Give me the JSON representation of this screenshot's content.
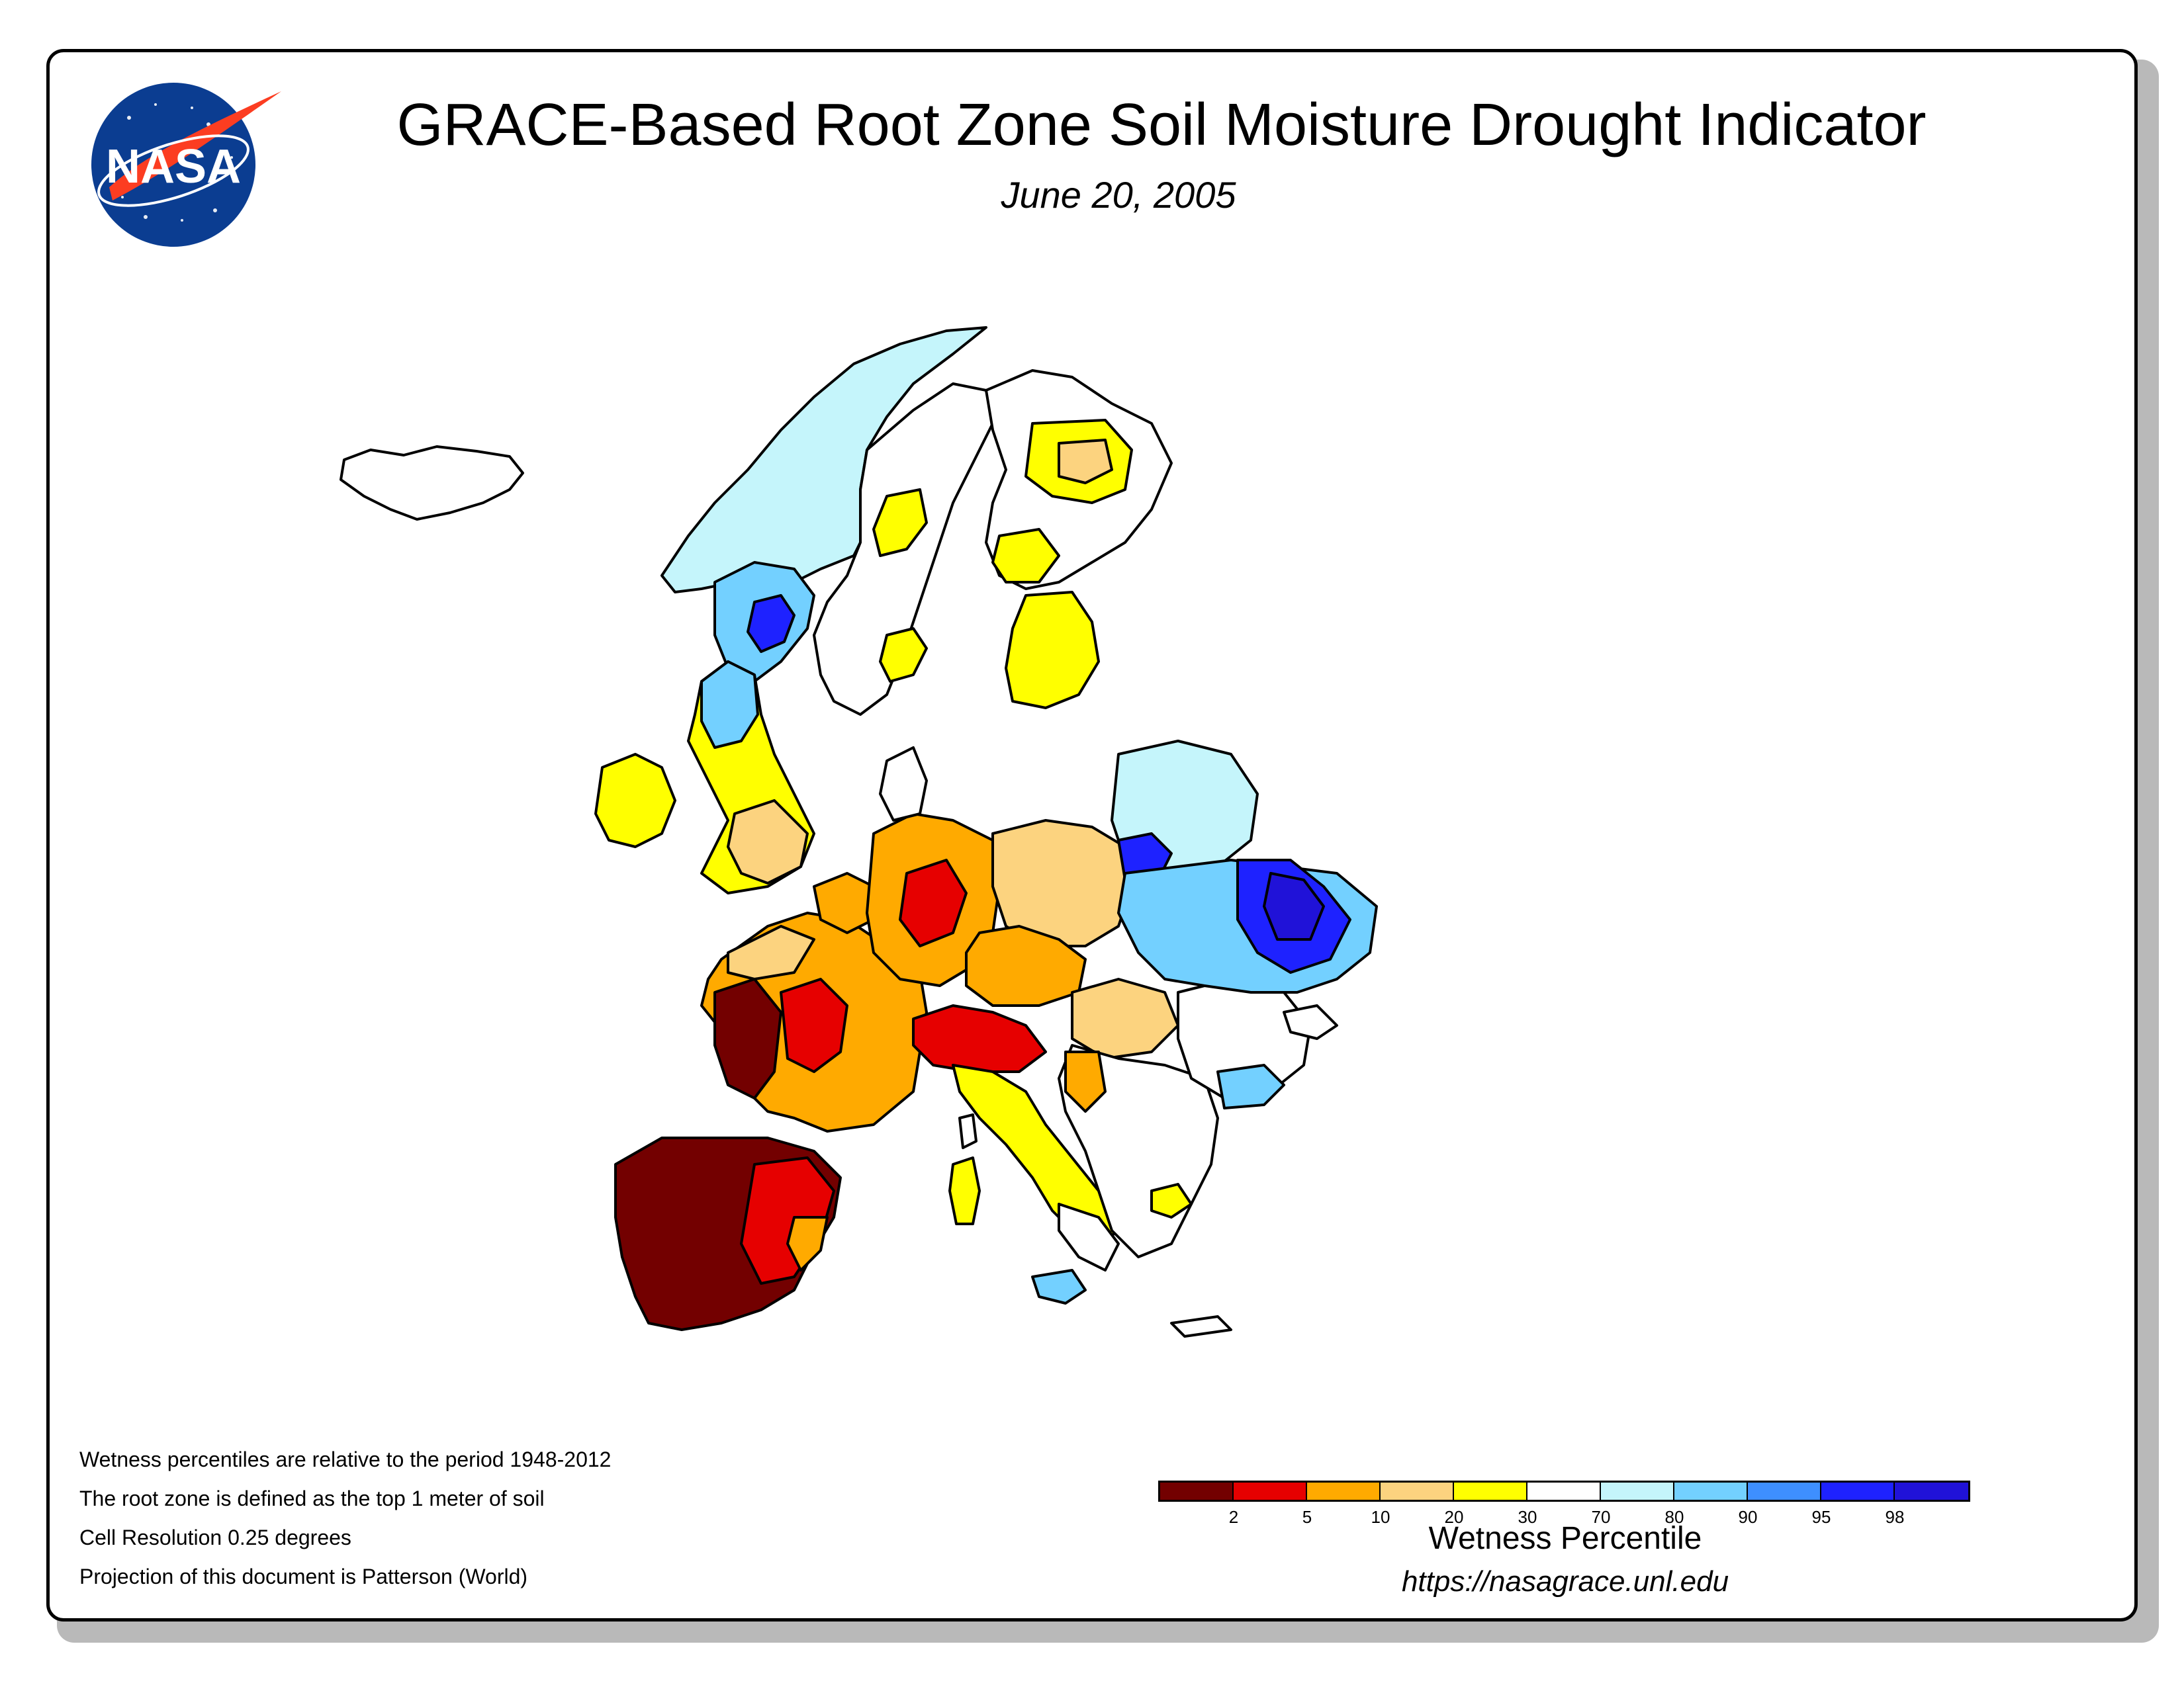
{
  "title": "GRACE-Based Root Zone Soil Moisture Drought Indicator",
  "date": "June 20, 2005",
  "logo": {
    "text": "NASA",
    "colors": {
      "disc": "#0b3d91",
      "swoosh": "#fc3d21",
      "text": "#ffffff"
    }
  },
  "notes": [
    "Wetness percentiles are relative to the period 1948-2012",
    "The root zone is defined as the top 1 meter of soil",
    "Cell Resolution 0.25 degrees",
    "Projection of this document is Patterson (World)"
  ],
  "legend": {
    "title": "Wetness Percentile",
    "tick_labels": [
      "2",
      "5",
      "10",
      "20",
      "30",
      "70",
      "80",
      "90",
      "95",
      "98"
    ],
    "colors": [
      "#730000",
      "#e60000",
      "#ffaa00",
      "#fcd37f",
      "#ffff00",
      "#ffffff",
      "#c5f5fb",
      "#73d0ff",
      "#3e8fff",
      "#1e22ff",
      "#2012d8"
    ]
  },
  "url": "https://nasagrace.unl.edu"
}
